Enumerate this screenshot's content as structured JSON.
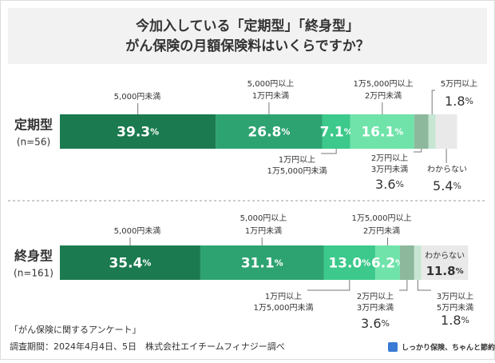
{
  "chart_data": {
    "type": "bar",
    "stacked": true,
    "orientation": "horizontal",
    "title": [
      "今加入している「定期型」「終身型」",
      "がん保険の月額保険料はいくらですか？"
    ],
    "xlim": [
      0,
      100
    ],
    "colors": [
      "#1b7a4f",
      "#2ea372",
      "#3cc98b",
      "#6fe3a9",
      "#8db89c",
      "#c6e6d3",
      "#e9e9e9"
    ],
    "groups": [
      {
        "name": "定期型",
        "note": "(n=56)",
        "segments": [
          {
            "label": [
              "5,000円未満"
            ],
            "value": 39.3,
            "value_label": "39.3%"
          },
          {
            "label": [
              "5,000円以上",
              "1万円未満"
            ],
            "value": 26.8,
            "value_label": "26.8%"
          },
          {
            "label": [
              "1万円以上",
              "1万5,000円未満"
            ],
            "value": 7.1,
            "value_label": "7.1%"
          },
          {
            "label": [
              "1万5,000円以上",
              "2万円未満"
            ],
            "value": 16.1,
            "value_label": "16.1%"
          },
          {
            "label": [
              "2万円以上",
              "3万円未満"
            ],
            "value": 3.6,
            "value_label": "3.6%"
          },
          {
            "label": [
              "5万円以上"
            ],
            "value": 1.8,
            "value_label": "1.8%"
          },
          {
            "label": [
              "わからない"
            ],
            "value": 5.4,
            "value_label": "5.4%"
          }
        ]
      },
      {
        "name": "終身型",
        "note": "(n=161)",
        "segments": [
          {
            "label": [
              "5,000円未満"
            ],
            "value": 35.4,
            "value_label": "35.4%"
          },
          {
            "label": [
              "5,000円以上",
              "1万円未満"
            ],
            "value": 31.1,
            "value_label": "31.1%"
          },
          {
            "label": [
              "1万円以上",
              "1万5,000円未満"
            ],
            "value": 13.0,
            "value_label": "13.0%"
          },
          {
            "label": [
              "1万5,000円以上",
              "2万円未満"
            ],
            "value": 6.2,
            "value_label": "6.2%"
          },
          {
            "label": [
              "2万円以上",
              "3万円未満"
            ],
            "value": 3.6,
            "value_label": "3.6%"
          },
          {
            "label": [
              "3万円以上",
              "5万円未満"
            ],
            "value": 1.8,
            "value_label": "1.8%"
          },
          {
            "label": [
              "わからない"
            ],
            "value": 11.8,
            "value_label": "11.8%"
          }
        ]
      }
    ]
  },
  "footer": {
    "survey": "「がん保険に関するアンケート」",
    "period": "調査期間：2024年4月4日、5日　株式会社エイチームフィナジー調べ",
    "logo": "しっかり保険、ちゃんと節約。"
  }
}
